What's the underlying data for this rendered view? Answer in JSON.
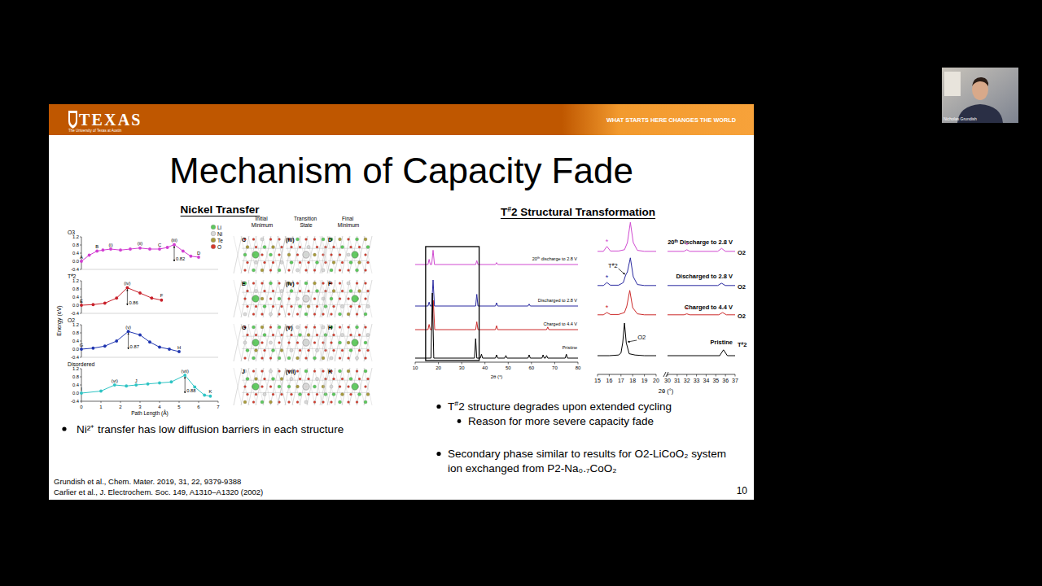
{
  "header": {
    "logo": "TEXAS",
    "logo_subtitle": "The University of Texas at Austin",
    "tagline": "WHAT STARTS HERE CHANGES THE WORLD"
  },
  "webcam": {
    "name": "Nicholas Grundish"
  },
  "slide": {
    "title": "Mechanism of Capacity Fade",
    "left_heading": "Nickel Transfer",
    "right_heading": "T#2 Structural Transformation",
    "left_bullets": [
      "Ni²⁺ transfer has low diffusion barriers in each structure"
    ],
    "right_bullets": [
      {
        "text": "T#2 structure degrades upon extended cycling",
        "sub": [
          "Reason for more severe capacity fade"
        ]
      },
      {
        "text": "Secondary phase similar to results for O2-LiCoO₂ system ion exchanged from P2-Na₀.₇CoO₂"
      }
    ],
    "references": [
      "Grundish et al., Chem. Mater. 2019, 31, 22, 9379-9388",
      "Carlier et al., J. Electrochem. Soc. 149, A1310–A1320 (2002)"
    ],
    "page_number": 10
  },
  "structures": {
    "legend": [
      {
        "label": "Li",
        "color": "#5cc85c"
      },
      {
        "label": "Ni",
        "color": "#d8d8d8"
      },
      {
        "label": "Te",
        "color": "#a89a3a"
      },
      {
        "label": "O",
        "color": "#d83a2a"
      }
    ],
    "columns": [
      "Initial Minimum",
      "Transition State",
      "Final Minimum"
    ],
    "rows": [
      [
        "C",
        "(iii)",
        "D"
      ],
      [
        "E",
        "(iv)",
        "F"
      ],
      [
        "G",
        "(v)",
        "H"
      ],
      [
        "J",
        "(vii)",
        "K"
      ]
    ]
  },
  "chart_data": [
    {
      "type": "line",
      "x_label": "Path Length (Å)",
      "y_label": "Energy (eV)",
      "xlim": [
        0,
        7
      ],
      "xticks": [
        0,
        1,
        2,
        3,
        4,
        5,
        6,
        7
      ],
      "ylim": [
        -0.4,
        1.2
      ],
      "yticks": [
        -0.4,
        {
          "value": 0,
          "label": "0.0"
        },
        0.4,
        0.8,
        1.2
      ],
      "marker": "circle",
      "line_style": "solid",
      "series": [
        {
          "name": "O3",
          "color": "#d23fd2",
          "x": [
            0,
            0.4,
            0.8,
            1.1,
            1.5,
            2.0,
            2.5,
            3.0,
            3.5,
            4.0,
            4.4,
            4.75,
            5.2,
            5.6,
            6.0
          ],
          "values": [
            0,
            0.3,
            0.5,
            0.55,
            0.6,
            0.55,
            0.6,
            0.65,
            0.6,
            0.6,
            0.68,
            0.82,
            0.5,
            0.25,
            0.2
          ],
          "point_labels": [
            "A",
            null,
            "B",
            null,
            "(i)",
            null,
            null,
            "(ii)",
            null,
            "C",
            null,
            "(iii)",
            null,
            null,
            "D"
          ],
          "barrier": 0.82
        },
        {
          "name": "T#2",
          "color": "#c8202a",
          "x": [
            0,
            0.6,
            1.2,
            1.8,
            2.35,
            3.0,
            3.6,
            4.1
          ],
          "values": [
            0,
            0.03,
            0.1,
            0.35,
            0.86,
            0.6,
            0.35,
            0.25
          ],
          "point_labels": [
            "E",
            null,
            null,
            null,
            "(iv)",
            null,
            null,
            "F"
          ],
          "barrier": 0.86
        },
        {
          "name": "O2",
          "color": "#1f35b0",
          "x": [
            0,
            0.6,
            1.2,
            1.8,
            2.4,
            3.0,
            3.5,
            4.0,
            4.5,
            5.0
          ],
          "values": [
            0,
            0.05,
            0.15,
            0.4,
            0.87,
            0.7,
            0.35,
            0.1,
            0.0,
            -0.12
          ],
          "point_labels": [
            "G",
            null,
            null,
            null,
            "(v)",
            null,
            null,
            null,
            null,
            "H"
          ],
          "barrier": 0.87
        },
        {
          "name": "Disordered",
          "color": "#2ec4c4",
          "x": [
            0,
            1.0,
            1.7,
            2.3,
            2.8,
            3.4,
            4.0,
            4.6,
            5.3,
            5.8,
            6.3,
            6.6
          ],
          "values": [
            0,
            0.1,
            0.4,
            0.35,
            0.4,
            0.45,
            0.5,
            0.55,
            0.88,
            0.3,
            -0.1,
            -0.15
          ],
          "point_labels": [
            "I",
            null,
            "(vi)",
            null,
            "J",
            null,
            null,
            null,
            "(vii)",
            null,
            null,
            "K"
          ],
          "barrier": 0.88
        }
      ]
    },
    {
      "type": "line",
      "x_label": "2θ (°)",
      "xlim": [
        10,
        80
      ],
      "xticks": [
        10,
        20,
        30,
        40,
        50,
        60,
        70,
        80
      ],
      "ylim": [
        0,
        100
      ],
      "tick_labels": "x",
      "zoom_range": [
        14.5,
        37.5
      ],
      "series": [
        {
          "name": "20ᵗʰ discharge to 2.8 V",
          "color": "#d04ad0",
          "x": [
            10,
            15.5,
            16,
            16.5,
            17.1,
            17.7,
            18.3,
            36,
            36.5,
            37,
            44.5,
            45,
            45.5,
            80
          ],
          "values": [
            0,
            0,
            8,
            0,
            0,
            22,
            0,
            0,
            6,
            0,
            0,
            3,
            0,
            0
          ]
        },
        {
          "name": "Discharged to 2.8 V",
          "color": "#2a2aa0",
          "x": [
            10,
            15.5,
            16,
            16.5,
            17.1,
            17.7,
            18.3,
            36,
            36.5,
            37,
            44.5,
            45,
            45.5,
            58.5,
            59,
            59.5,
            80
          ],
          "values": [
            0,
            0,
            6,
            0,
            0,
            40,
            0,
            0,
            18,
            0,
            0,
            5,
            0,
            0,
            3,
            0,
            0
          ]
        },
        {
          "name": "Charged to 4.4 V",
          "color": "#cc2a2a",
          "x": [
            10,
            15.5,
            16,
            16.5,
            17.2,
            17.8,
            18.4,
            36,
            36.5,
            37,
            44.5,
            45,
            45.5,
            66.5,
            67,
            67.5,
            80
          ],
          "values": [
            0,
            0,
            8,
            0,
            0,
            45,
            0,
            0,
            12,
            0,
            0,
            6,
            0,
            0,
            4,
            0,
            0
          ]
        },
        {
          "name": "Pristine",
          "color": "#000000",
          "x": [
            10,
            16.8,
            17.4,
            18.0,
            35.5,
            36,
            36.5,
            38,
            38.5,
            39,
            44.5,
            45,
            45.5,
            48.5,
            49,
            49.5,
            58.5,
            59,
            59.5,
            64.5,
            65,
            65.5,
            66,
            66.5,
            67,
            74.5,
            75,
            75.5,
            80
          ],
          "values": [
            0,
            0,
            100,
            0,
            0,
            30,
            0,
            0,
            6,
            0,
            0,
            5,
            0,
            0,
            4,
            0,
            0,
            5,
            0,
            0,
            5,
            0,
            0,
            4,
            0,
            0,
            6,
            0,
            0
          ]
        }
      ]
    },
    {
      "type": "line",
      "x_label": "2θ (°)",
      "xlim": [
        15,
        20
      ],
      "xticks": [
        15,
        16,
        17,
        18,
        19,
        20
      ],
      "ylim": [
        0,
        100
      ],
      "tick_labels": "x",
      "series": [
        {
          "name": "20ᵗʰ Discharge to 2.8 V",
          "color": "#d04ad0",
          "x": [
            15,
            15.5,
            15.8,
            16.1,
            16.8,
            17.3,
            17.55,
            17.8,
            18.05,
            18.4,
            19,
            20
          ],
          "values": [
            3,
            3,
            18,
            4,
            4,
            8,
            30,
            92,
            30,
            6,
            3,
            3
          ]
        },
        {
          "name": "Discharged to 2.8 V",
          "color": "#2a2aa0",
          "x": [
            15,
            15.5,
            15.8,
            16.1,
            16.8,
            17.2,
            17.4,
            17.55,
            17.8,
            18.05,
            18.4,
            19,
            20
          ],
          "values": [
            3,
            3,
            12,
            4,
            4,
            12,
            35,
            45,
            88,
            30,
            6,
            3,
            3
          ]
        },
        {
          "name": "Charged to 4.4 V",
          "color": "#cc2a2a",
          "x": [
            15,
            15.5,
            15.8,
            16.1,
            16.8,
            17.3,
            17.5,
            17.75,
            18.0,
            18.4,
            19,
            20
          ],
          "values": [
            3,
            3,
            10,
            4,
            4,
            10,
            30,
            78,
            25,
            6,
            3,
            3
          ]
        },
        {
          "name": "Pristine",
          "color": "#000000",
          "x": [
            15,
            16,
            16.8,
            17.0,
            17.15,
            17.3,
            17.45,
            17.7,
            18.2,
            19,
            20
          ],
          "values": [
            0,
            0,
            2,
            8,
            40,
            100,
            40,
            6,
            2,
            0,
            0
          ]
        }
      ],
      "annotations": [
        {
          "text": "*",
          "x": 15.8,
          "series": 0
        },
        {
          "text": "*",
          "x": 15.8,
          "series": 1
        },
        {
          "text": "*",
          "x": 15.8,
          "series": 2
        }
      ],
      "callouts": [
        {
          "text": "T#2",
          "x": 17.4,
          "series": 1
        },
        {
          "text": "O2",
          "x": 17.45,
          "series": 3
        }
      ]
    },
    {
      "type": "line",
      "xlim": [
        30,
        37
      ],
      "xticks": [
        30,
        31,
        32,
        33,
        34,
        35,
        36,
        37
      ],
      "ylim": [
        0,
        100
      ],
      "tick_labels": "x",
      "series": [
        {
          "name": "O2",
          "color": "#d04ad0",
          "x": [
            30,
            31.7,
            32,
            32.3,
            35.2,
            35.6,
            36,
            37
          ],
          "values": [
            3,
            3,
            8,
            3,
            3,
            12,
            3,
            3
          ]
        },
        {
          "name": "O2",
          "color": "#2a2aa0",
          "x": [
            30,
            35.2,
            35.6,
            36,
            37
          ],
          "values": [
            3,
            3,
            10,
            3,
            3
          ]
        },
        {
          "name": "O2",
          "color": "#cc2a2a",
          "x": [
            30,
            31.7,
            32,
            32.3,
            35.3,
            35.7,
            36.1,
            37
          ],
          "values": [
            3,
            3,
            6,
            3,
            3,
            10,
            3,
            3
          ]
        },
        {
          "name": "T#2",
          "color": "#000000",
          "x": [
            30,
            35.4,
            35.8,
            36.2,
            37
          ],
          "values": [
            0,
            0,
            18,
            0,
            0
          ]
        }
      ],
      "annotations": [
        {
          "text": "*",
          "x": 32,
          "series": 0
        },
        {
          "text": "*",
          "x": 32,
          "series": 2
        }
      ]
    }
  ]
}
